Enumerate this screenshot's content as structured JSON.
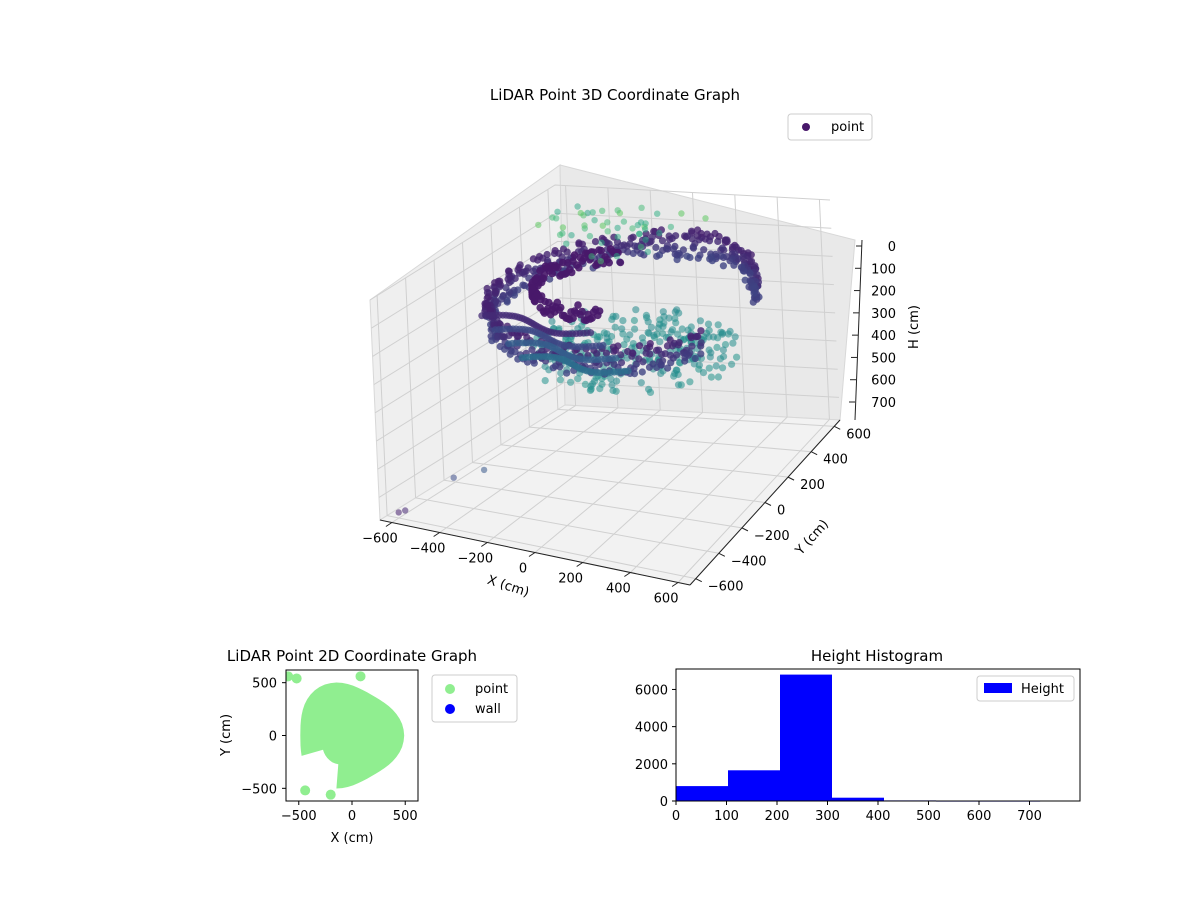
{
  "chart_data": [
    {
      "type": "scatter",
      "projection": "3d",
      "title": "LiDAR Point 3D Coordinate Graph",
      "xlabel": "X (cm)",
      "ylabel": "Y (cm)",
      "zlabel": "H (cm)",
      "x_ticks": [
        -600,
        -400,
        -200,
        0,
        200,
        400,
        600
      ],
      "y_ticks": [
        -600,
        -400,
        -200,
        0,
        200,
        400,
        600
      ],
      "z_ticks": [
        0,
        100,
        200,
        300,
        400,
        500,
        600,
        700
      ],
      "xlim": [
        -650,
        650
      ],
      "ylim": [
        -650,
        650
      ],
      "zlim": [
        780,
        0
      ],
      "legend": {
        "labels": [
          "point"
        ],
        "position": "top-right"
      },
      "series": [
        {
          "name": "point",
          "colormap": "viridis (by height)",
          "description_points": [
            {
              "x": -600,
              "y": -600,
              "h": 760
            },
            {
              "x": -560,
              "y": -620,
              "h": 740
            },
            {
              "x": -420,
              "y": -500,
              "h": 640
            },
            {
              "x": -300,
              "y": -480,
              "h": 600
            },
            {
              "x": -500,
              "y": 300,
              "h": 20
            },
            {
              "x": -420,
              "y": 350,
              "h": 40
            },
            {
              "x": -380,
              "y": 420,
              "h": 10
            },
            {
              "x": -300,
              "y": 450,
              "h": 60
            },
            {
              "x": -250,
              "y": 500,
              "h": 30
            },
            {
              "x": -150,
              "y": 520,
              "h": 80
            },
            {
              "x": 0,
              "y": 560,
              "h": 40
            },
            {
              "x": 100,
              "y": 580,
              "h": 60
            }
          ],
          "ring_radius_cm": 520,
          "ring_height_range": [
            200,
            300
          ]
        }
      ]
    },
    {
      "type": "scatter",
      "title": "LiDAR Point 2D Coordinate Graph",
      "xlabel": "X (cm)",
      "ylabel": "Y (cm)",
      "x_ticks": [
        -500,
        0,
        500
      ],
      "y_ticks": [
        -500,
        0,
        500
      ],
      "xlim": [
        -620,
        620
      ],
      "ylim": [
        -620,
        620
      ],
      "legend": {
        "labels": [
          "point",
          "wall"
        ],
        "position": "outside-right"
      },
      "series": [
        {
          "name": "point",
          "color": "#90ee90",
          "shape": "disc",
          "radius_cm": 530,
          "center": [
            0,
            0
          ]
        },
        {
          "name": "wall",
          "color": "#0000ff",
          "values": []
        }
      ]
    },
    {
      "type": "bar",
      "subtype": "histogram",
      "title": "Height Histogram",
      "x_ticks": [
        0,
        100,
        200,
        300,
        400,
        500,
        600,
        700
      ],
      "y_ticks": [
        0,
        2000,
        4000,
        6000
      ],
      "xlim": [
        0,
        800
      ],
      "ylim": [
        0,
        7100
      ],
      "bin_edges": [
        0,
        103,
        206,
        309,
        412,
        515,
        618,
        721
      ],
      "counts": [
        800,
        1650,
        6800,
        180,
        30,
        20,
        20
      ],
      "color": "#0000ff",
      "legend": {
        "labels": [
          "Height"
        ],
        "position": "top-right"
      }
    }
  ]
}
